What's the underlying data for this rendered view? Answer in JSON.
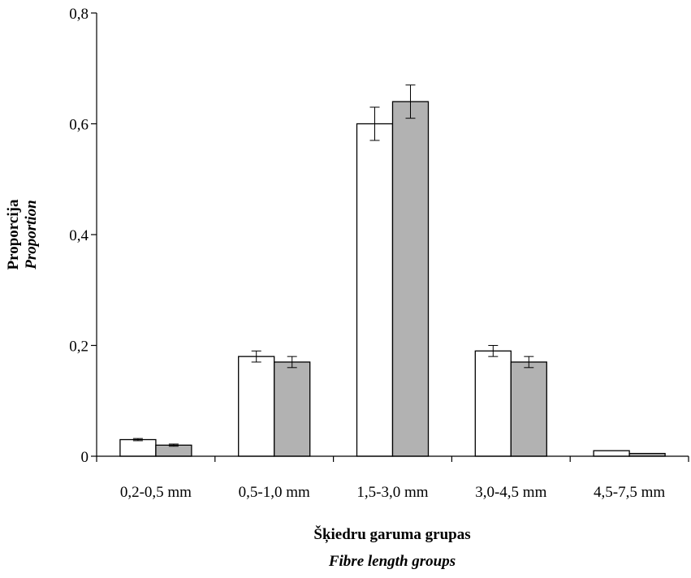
{
  "chart_data": {
    "type": "bar",
    "categories": [
      "0,2-0,5 mm",
      "0,5-1,0 mm",
      "1,5-3,0 mm",
      "3,0-4,5 mm",
      "4,5-7,5 mm"
    ],
    "series": [
      {
        "color": "#ffffff",
        "values": [
          0.03,
          0.18,
          0.6,
          0.19,
          0.01
        ],
        "errors": [
          0.002,
          0.01,
          0.03,
          0.01,
          0.0
        ]
      },
      {
        "color": "#b2b2b2",
        "values": [
          0.02,
          0.17,
          0.64,
          0.17,
          0.005
        ],
        "errors": [
          0.002,
          0.01,
          0.03,
          0.01,
          0.0
        ]
      }
    ],
    "xlabel": "Šķiedru garuma grupas",
    "xlabel_en": "Fibre length groups",
    "ylabel": "Proporcija",
    "ylabel_en": "Proportion",
    "ylim": [
      0,
      0.8
    ],
    "yticks": [
      0,
      0.2,
      0.4,
      0.6,
      0.8
    ],
    "ytick_labels": [
      "0",
      "0,2",
      "0,4",
      "0,6",
      "0,8"
    ],
    "grid": false,
    "legend": "none"
  }
}
